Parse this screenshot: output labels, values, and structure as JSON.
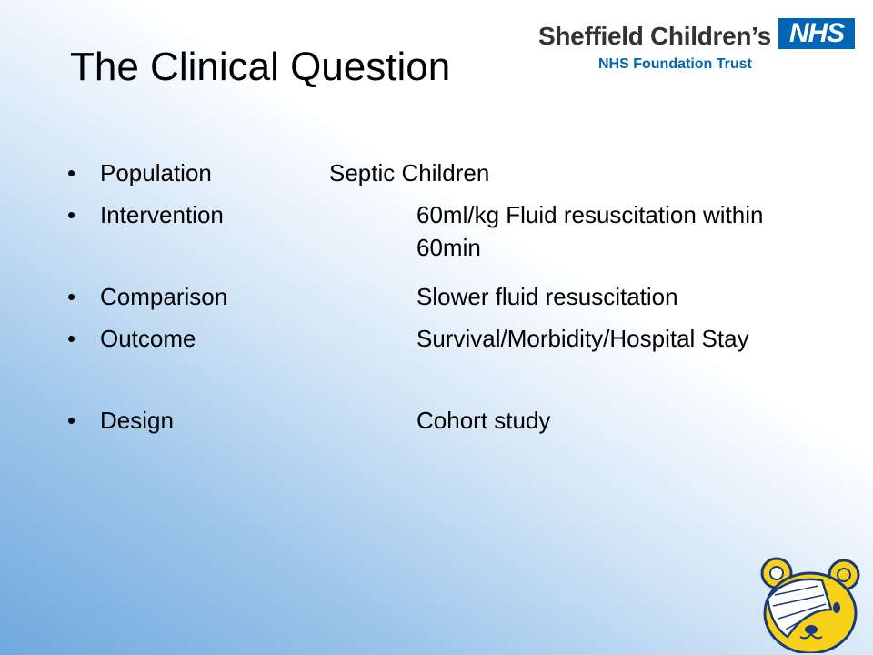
{
  "slide": {
    "title": "The Clinical Question",
    "logo": {
      "organisation": "Sheffield Children’s",
      "badge": "NHS",
      "subtitle": "NHS Foundation Trust"
    },
    "bullet_glyph": "•",
    "items": [
      {
        "label": "Population",
        "value": "Septic Children"
      },
      {
        "label": "Intervention",
        "value": "60ml/kg Fluid resuscitation within 60min"
      },
      {
        "label": "Comparison",
        "value": "Slower fluid resuscitation"
      },
      {
        "label": "Outcome",
        "value": "Survival/Morbidity/Hospital Stay"
      },
      {
        "label": "Design",
        "value": "Cohort study"
      }
    ],
    "colors": {
      "nhs_blue": "#0066b3",
      "mascot_yellow": "#f7d117"
    },
    "mascot_icon": "bandaged-bear-icon"
  }
}
